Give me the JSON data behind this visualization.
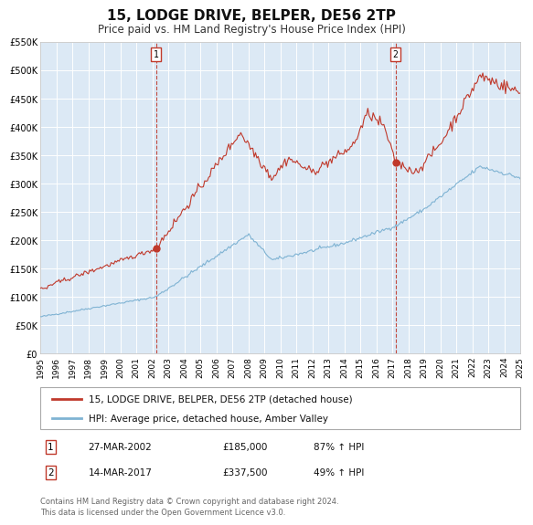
{
  "title": "15, LODGE DRIVE, BELPER, DE56 2TP",
  "subtitle": "Price paid vs. HM Land Registry's House Price Index (HPI)",
  "title_fontsize": 11,
  "subtitle_fontsize": 8.5,
  "background_color": "#ffffff",
  "plot_bg_color": "#dce9f5",
  "grid_color": "#ffffff",
  "red_line_color": "#c0392b",
  "blue_line_color": "#7fb3d3",
  "sale1_year": 2002.23,
  "sale1_price": 185000,
  "sale1_label": "1",
  "sale2_year": 2017.2,
  "sale2_price": 337500,
  "sale2_label": "2",
  "xmin": 1995,
  "xmax": 2025,
  "ymin": 0,
  "ymax": 550000,
  "yticks": [
    0,
    50000,
    100000,
    150000,
    200000,
    250000,
    300000,
    350000,
    400000,
    450000,
    500000,
    550000
  ],
  "ytick_labels": [
    "£0",
    "£50K",
    "£100K",
    "£150K",
    "£200K",
    "£250K",
    "£300K",
    "£350K",
    "£400K",
    "£450K",
    "£500K",
    "£550K"
  ],
  "legend_red_label": "15, LODGE DRIVE, BELPER, DE56 2TP (detached house)",
  "legend_blue_label": "HPI: Average price, detached house, Amber Valley",
  "table_row1": [
    "1",
    "27-MAR-2002",
    "£185,000",
    "87% ↑ HPI"
  ],
  "table_row2": [
    "2",
    "14-MAR-2017",
    "£337,500",
    "49% ↑ HPI"
  ],
  "footnote": "Contains HM Land Registry data © Crown copyright and database right 2024.\nThis data is licensed under the Open Government Licence v3.0."
}
